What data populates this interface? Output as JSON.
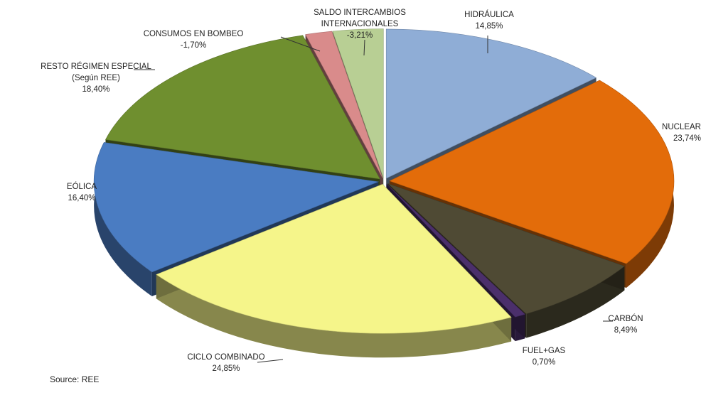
{
  "chart_data": {
    "type": "pie",
    "title": "",
    "legend": "none",
    "unit": "%",
    "slices": [
      {
        "label": "HIDRÁULICA",
        "value": 14.85,
        "value_label": "14,85%",
        "color": "#8fadd6"
      },
      {
        "label": "NUCLEAR",
        "value": 23.74,
        "value_label": "23,74%",
        "color": "#e36c0a"
      },
      {
        "label": "CARBÓN",
        "value": 8.49,
        "value_label": "8,49%",
        "color": "#4f4a34"
      },
      {
        "label": "FUEL+GAS",
        "value": 0.7,
        "value_label": "0,70%",
        "color": "#4b2f6b"
      },
      {
        "label": "CICLO COMBINADO",
        "value": 24.85,
        "value_label": "24,85%",
        "color": "#f5f58a"
      },
      {
        "label": "EÓLICA",
        "value": 16.4,
        "value_label": "16,40%",
        "color": "#4a7cc2"
      },
      {
        "label": "RESTO RÉGIMEN  ESPECIAL (Según REE)",
        "value": 18.4,
        "value_label": "18,40%",
        "color": "#6f8f2f"
      },
      {
        "label": "CONSUMOS EN BOMBEO",
        "value": -1.7,
        "value_label": "-1,70%",
        "color": "#d98b8b"
      },
      {
        "label": "SALDO INTERCAMBIOS INTERNACIONALES",
        "value": -3.21,
        "value_label": "-3,21%",
        "color": "#b8cf94"
      }
    ]
  },
  "source": "Source: REE"
}
